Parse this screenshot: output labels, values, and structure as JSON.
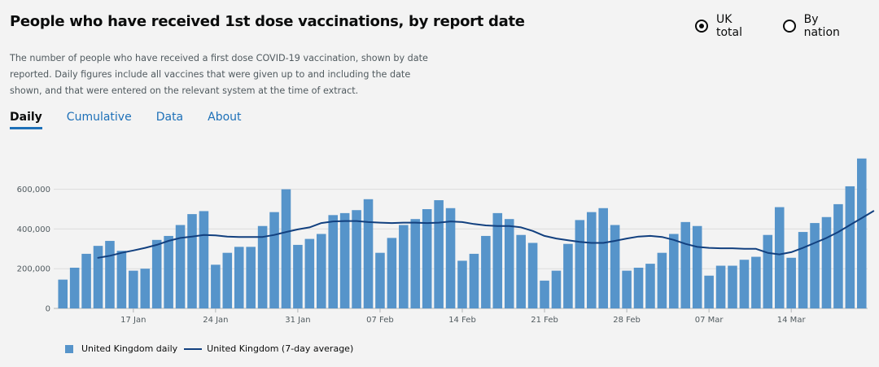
{
  "title": "People who have received 1st dose vaccinations, by report date",
  "view_options": [
    {
      "label": "UK total",
      "selected": true
    },
    {
      "label": "By nation",
      "selected": false
    }
  ],
  "description": "The number of people who have received a first dose COVID-19 vaccination, shown by date reported. Daily figures include all vaccines that were given up to and including the date shown, and that were entered on the relevant system at the time of extract.",
  "tabs": [
    {
      "label": "Daily",
      "active": true
    },
    {
      "label": "Cumulative",
      "active": false
    },
    {
      "label": "Data",
      "active": false
    },
    {
      "label": "About",
      "active": false
    }
  ],
  "colors": {
    "bar": "#5694ca",
    "line": "#12407f",
    "accent": "#1d70b8"
  },
  "chart_data": {
    "type": "bar",
    "ylim": [
      0,
      750000
    ],
    "yticks": [
      0,
      200000,
      400000,
      600000
    ],
    "ytick_labels": [
      "0",
      "200,000",
      "400,000",
      "600,000"
    ],
    "xtick_labels": [
      {
        "label": "17 Jan",
        "index": 6
      },
      {
        "label": "24 Jan",
        "index": 13
      },
      {
        "label": "31 Jan",
        "index": 20
      },
      {
        "label": "07 Feb",
        "index": 27
      },
      {
        "label": "14 Feb",
        "index": 34
      },
      {
        "label": "21 Feb",
        "index": 41
      },
      {
        "label": "28 Feb",
        "index": 48
      },
      {
        "label": "07 Mar",
        "index": 55
      },
      {
        "label": "14 Mar",
        "index": 62
      }
    ],
    "series": [
      {
        "name": "United Kingdom daily",
        "kind": "bar",
        "values": [
          145000,
          205000,
          275000,
          315000,
          340000,
          290000,
          190000,
          200000,
          345000,
          365000,
          420000,
          475000,
          490000,
          220000,
          280000,
          310000,
          310000,
          415000,
          485000,
          600000,
          320000,
          350000,
          375000,
          470000,
          480000,
          495000,
          550000,
          280000,
          355000,
          420000,
          450000,
          500000,
          545000,
          505000,
          240000,
          275000,
          365000,
          480000,
          450000,
          370000,
          330000,
          140000,
          190000,
          325000,
          445000,
          485000,
          505000,
          420000,
          190000,
          205000,
          225000,
          280000,
          375000,
          435000,
          415000,
          165000,
          215000,
          215000,
          245000,
          260000,
          370000,
          510000,
          255000,
          385000,
          430000,
          460000,
          525000,
          615000,
          755000
        ]
      },
      {
        "name": "United Kingdom (7-day average)",
        "kind": "line",
        "start_index": 3,
        "values": [
          255000,
          265000,
          280000,
          292000,
          305000,
          320000,
          340000,
          355000,
          362000,
          370000,
          368000,
          362000,
          360000,
          360000,
          360000,
          370000,
          385000,
          398000,
          408000,
          430000,
          438000,
          440000,
          440000,
          435000,
          432000,
          430000,
          432000,
          432000,
          430000,
          432000,
          438000,
          435000,
          425000,
          418000,
          415000,
          415000,
          408000,
          390000,
          365000,
          352000,
          343000,
          335000,
          330000,
          330000,
          340000,
          352000,
          362000,
          365000,
          360000,
          345000,
          325000,
          310000,
          305000,
          303000,
          303000,
          300000,
          300000,
          280000,
          272000,
          283000,
          305000,
          330000,
          355000,
          385000,
          420000,
          455000,
          490000
        ]
      }
    ]
  }
}
